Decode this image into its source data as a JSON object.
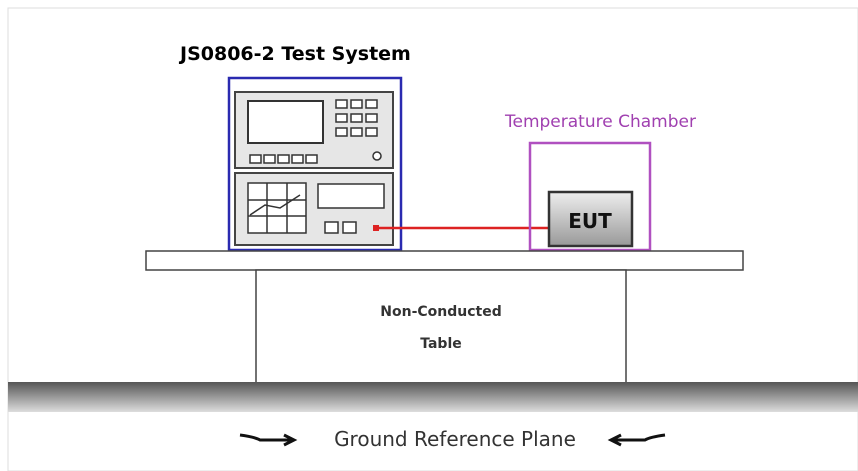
{
  "title": "JS0806-2 Test System",
  "chamber_label": "Temperature Chamber",
  "eut_label": "EUT",
  "table_label": [
    "Non-Conducted",
    "Table"
  ],
  "ground_label": "Ground Reference Plane"
}
